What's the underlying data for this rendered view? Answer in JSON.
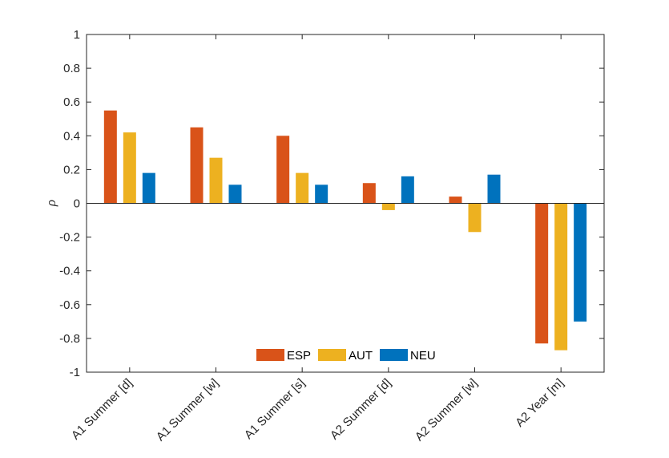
{
  "chart_data": {
    "type": "bar",
    "title": "",
    "xlabel": "",
    "ylabel": "ρ",
    "ylim": [
      -1,
      1
    ],
    "yticks": [
      "1",
      "0.8",
      "0.6",
      "0.4",
      "0.2",
      "0",
      "-0.2",
      "-0.4",
      "-0.6",
      "-0.8",
      "-1"
    ],
    "grid": false,
    "legend_position": "bottom-center",
    "categories": [
      "A1 Summer [d]",
      "A1 Summer [w]",
      "A1 Summer [s]",
      "A2 Summer [d]",
      "A2 Summer [w]",
      "A2 Year [m]"
    ],
    "series": [
      {
        "name": "ESP",
        "color": "#D95319",
        "values": [
          0.55,
          0.45,
          0.4,
          0.12,
          0.04,
          -0.83
        ]
      },
      {
        "name": "AUT",
        "color": "#EDB120",
        "values": [
          0.42,
          0.27,
          0.18,
          -0.04,
          -0.17,
          -0.87
        ]
      },
      {
        "name": "NEU",
        "color": "#0072BD",
        "values": [
          0.18,
          0.11,
          0.11,
          0.16,
          0.17,
          -0.7
        ]
      }
    ]
  }
}
